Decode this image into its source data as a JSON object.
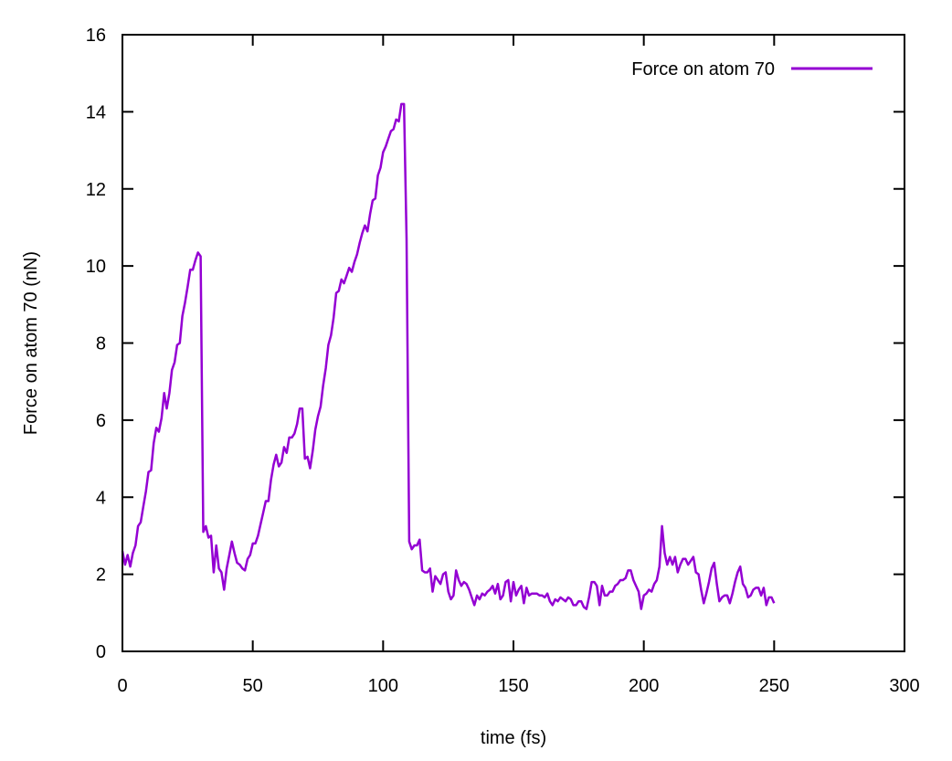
{
  "chart_data": {
    "type": "line",
    "xlabel": "time (fs)",
    "ylabel": "Force on atom 70 (nN)",
    "xlim": [
      0,
      300
    ],
    "ylim": [
      0,
      16
    ],
    "xticks": [
      0,
      50,
      100,
      150,
      200,
      250,
      300
    ],
    "yticks": [
      0,
      2,
      4,
      6,
      8,
      10,
      12,
      14,
      16
    ],
    "grid": false,
    "legend_position": "top-right",
    "series": [
      {
        "name": "Force on atom 70",
        "color": "#9400d3",
        "x": [
          0,
          1,
          2,
          3,
          4,
          5,
          6,
          7,
          8,
          9,
          10,
          11,
          12,
          13,
          14,
          15,
          16,
          17,
          18,
          19,
          20,
          21,
          22,
          23,
          24,
          25,
          26,
          27,
          28,
          29,
          30,
          31,
          32,
          33,
          34,
          35,
          36,
          37,
          38,
          39,
          40,
          41,
          42,
          43,
          44,
          45,
          46,
          47,
          48,
          49,
          50,
          51,
          52,
          53,
          54,
          55,
          56,
          57,
          58,
          59,
          60,
          61,
          62,
          63,
          64,
          65,
          66,
          67,
          68,
          69,
          70,
          71,
          72,
          73,
          74,
          75,
          76,
          77,
          78,
          79,
          80,
          81,
          82,
          83,
          84,
          85,
          86,
          87,
          88,
          89,
          90,
          91,
          92,
          93,
          94,
          95,
          96,
          97,
          98,
          99,
          100,
          101,
          102,
          103,
          104,
          105,
          106,
          107,
          108,
          109,
          110,
          111,
          112,
          113,
          114,
          115,
          116,
          117,
          118,
          119,
          120,
          121,
          122,
          123,
          124,
          125,
          126,
          127,
          128,
          129,
          130,
          131,
          132,
          133,
          134,
          135,
          136,
          137,
          138,
          139,
          140,
          141,
          142,
          143,
          144,
          145,
          146,
          147,
          148,
          149,
          150,
          151,
          152,
          153,
          154,
          155,
          156,
          157,
          158,
          159,
          160,
          161,
          162,
          163,
          164,
          165,
          166,
          167,
          168,
          169,
          170,
          171,
          172,
          173,
          174,
          175,
          176,
          177,
          178,
          179,
          180,
          181,
          182,
          183,
          184,
          185,
          186,
          187,
          188,
          189,
          190,
          191,
          192,
          193,
          194,
          195,
          196,
          197,
          198,
          199,
          200,
          201,
          202,
          203,
          204,
          205,
          206,
          207,
          208,
          209,
          210,
          211,
          212,
          213,
          214,
          215,
          216,
          217,
          218,
          219,
          220,
          221,
          222,
          223,
          224,
          225,
          226,
          227,
          228,
          229,
          230,
          231,
          232,
          233,
          234,
          235,
          236,
          237,
          238,
          239,
          240,
          241,
          242,
          243,
          244,
          245,
          246,
          247,
          248,
          249,
          250
        ],
        "y": [
          2.6,
          2.25,
          2.5,
          2.2,
          2.55,
          2.75,
          3.25,
          3.35,
          3.75,
          4.15,
          4.65,
          4.7,
          5.4,
          5.8,
          5.7,
          6.05,
          6.7,
          6.3,
          6.7,
          7.3,
          7.5,
          7.95,
          8.0,
          8.7,
          9.05,
          9.45,
          9.9,
          9.9,
          10.15,
          10.35,
          10.25,
          3.1,
          3.25,
          2.95,
          3.0,
          2.05,
          2.75,
          2.15,
          2.05,
          1.6,
          2.15,
          2.5,
          2.85,
          2.55,
          2.3,
          2.25,
          2.15,
          2.1,
          2.4,
          2.5,
          2.8,
          2.8,
          3.0,
          3.3,
          3.6,
          3.9,
          3.9,
          4.45,
          4.85,
          5.1,
          4.8,
          4.9,
          5.3,
          5.15,
          5.55,
          5.55,
          5.65,
          5.9,
          6.3,
          6.3,
          5.0,
          5.05,
          4.75,
          5.2,
          5.75,
          6.1,
          6.35,
          6.9,
          7.35,
          7.95,
          8.2,
          8.65,
          9.3,
          9.35,
          9.65,
          9.55,
          9.75,
          9.95,
          9.85,
          10.1,
          10.3,
          10.6,
          10.85,
          11.05,
          10.9,
          11.35,
          11.7,
          11.75,
          12.35,
          12.55,
          12.95,
          13.1,
          13.3,
          13.5,
          13.55,
          13.8,
          13.75,
          14.2,
          14.2,
          10.7,
          2.85,
          2.65,
          2.75,
          2.75,
          2.9,
          2.1,
          2.05,
          2.05,
          2.15,
          1.55,
          1.95,
          1.85,
          1.75,
          2.0,
          2.05,
          1.55,
          1.35,
          1.45,
          2.1,
          1.85,
          1.7,
          1.8,
          1.75,
          1.6,
          1.4,
          1.2,
          1.45,
          1.35,
          1.5,
          1.45,
          1.55,
          1.6,
          1.7,
          1.5,
          1.75,
          1.35,
          1.45,
          1.8,
          1.85,
          1.3,
          1.8,
          1.45,
          1.6,
          1.7,
          1.25,
          1.65,
          1.45,
          1.5,
          1.5,
          1.5,
          1.45,
          1.45,
          1.4,
          1.5,
          1.3,
          1.2,
          1.35,
          1.3,
          1.4,
          1.35,
          1.3,
          1.4,
          1.35,
          1.2,
          1.2,
          1.3,
          1.3,
          1.15,
          1.1,
          1.4,
          1.8,
          1.8,
          1.7,
          1.2,
          1.7,
          1.45,
          1.45,
          1.55,
          1.55,
          1.7,
          1.75,
          1.85,
          1.85,
          1.9,
          2.1,
          2.1,
          1.85,
          1.7,
          1.55,
          1.1,
          1.45,
          1.5,
          1.6,
          1.55,
          1.75,
          1.85,
          2.2,
          3.25,
          2.55,
          2.25,
          2.45,
          2.25,
          2.45,
          2.05,
          2.25,
          2.4,
          2.4,
          2.25,
          2.35,
          2.45,
          2.05,
          2.0,
          1.6,
          1.25,
          1.5,
          1.8,
          2.15,
          2.3,
          1.75,
          1.3,
          1.4,
          1.45,
          1.45,
          1.25,
          1.5,
          1.8,
          2.05,
          2.2,
          1.75,
          1.65,
          1.4,
          1.45,
          1.6,
          1.65,
          1.65,
          1.45,
          1.65,
          1.2,
          1.4,
          1.4,
          1.25
        ]
      }
    ]
  }
}
